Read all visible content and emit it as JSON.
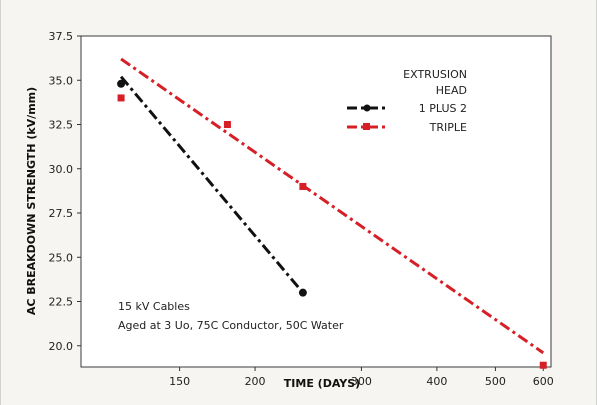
{
  "chart_data": {
    "type": "line",
    "title": "",
    "xlabel": "TIME (DAYS)",
    "ylabel": "AC BREAKDOWN STRENGTH (kV/mm)",
    "x_scale": "log",
    "xlim": [
      103,
      618
    ],
    "ylim": [
      18.8,
      37.5
    ],
    "x_ticks": [
      150,
      200,
      300,
      400,
      500,
      600
    ],
    "x_tick_labels": [
      "150",
      "200",
      "300",
      "400",
      "500",
      "600"
    ],
    "y_ticks": [
      20.0,
      22.5,
      25.0,
      27.5,
      30.0,
      32.5,
      35.0,
      37.5
    ],
    "y_tick_labels": [
      "20.0",
      "22.5",
      "25.0",
      "27.5",
      "30.0",
      "32.5",
      "35.0",
      "37.5"
    ],
    "grid": false,
    "legend": {
      "title_line1": "EXTRUSION",
      "title_line2": "HEAD",
      "placement": "top-right"
    },
    "annotations": [
      "15 kV Cables",
      "Aged at 3 Uo, 75C Conductor, 50C Water"
    ],
    "series": [
      {
        "name": "1 PLUS 2",
        "color": "#111111",
        "marker": "circle",
        "points": [
          {
            "x": 120,
            "y": 34.8
          },
          {
            "x": 240,
            "y": 23.0
          }
        ],
        "fit": [
          {
            "x": 120,
            "y": 35.2
          },
          {
            "x": 240,
            "y": 23.0
          }
        ]
      },
      {
        "name": "TRIPLE",
        "color": "#d61f26",
        "marker": "square",
        "points": [
          {
            "x": 120,
            "y": 34.0
          },
          {
            "x": 180,
            "y": 32.5
          },
          {
            "x": 240,
            "y": 29.0
          },
          {
            "x": 600,
            "y": 18.9
          }
        ],
        "fit": [
          {
            "x": 120,
            "y": 36.2
          },
          {
            "x": 600,
            "y": 19.6
          }
        ]
      }
    ],
    "colors": {
      "background": "#f6f5f1",
      "plot_area": "#ffffff",
      "axis": "#222222"
    }
  }
}
